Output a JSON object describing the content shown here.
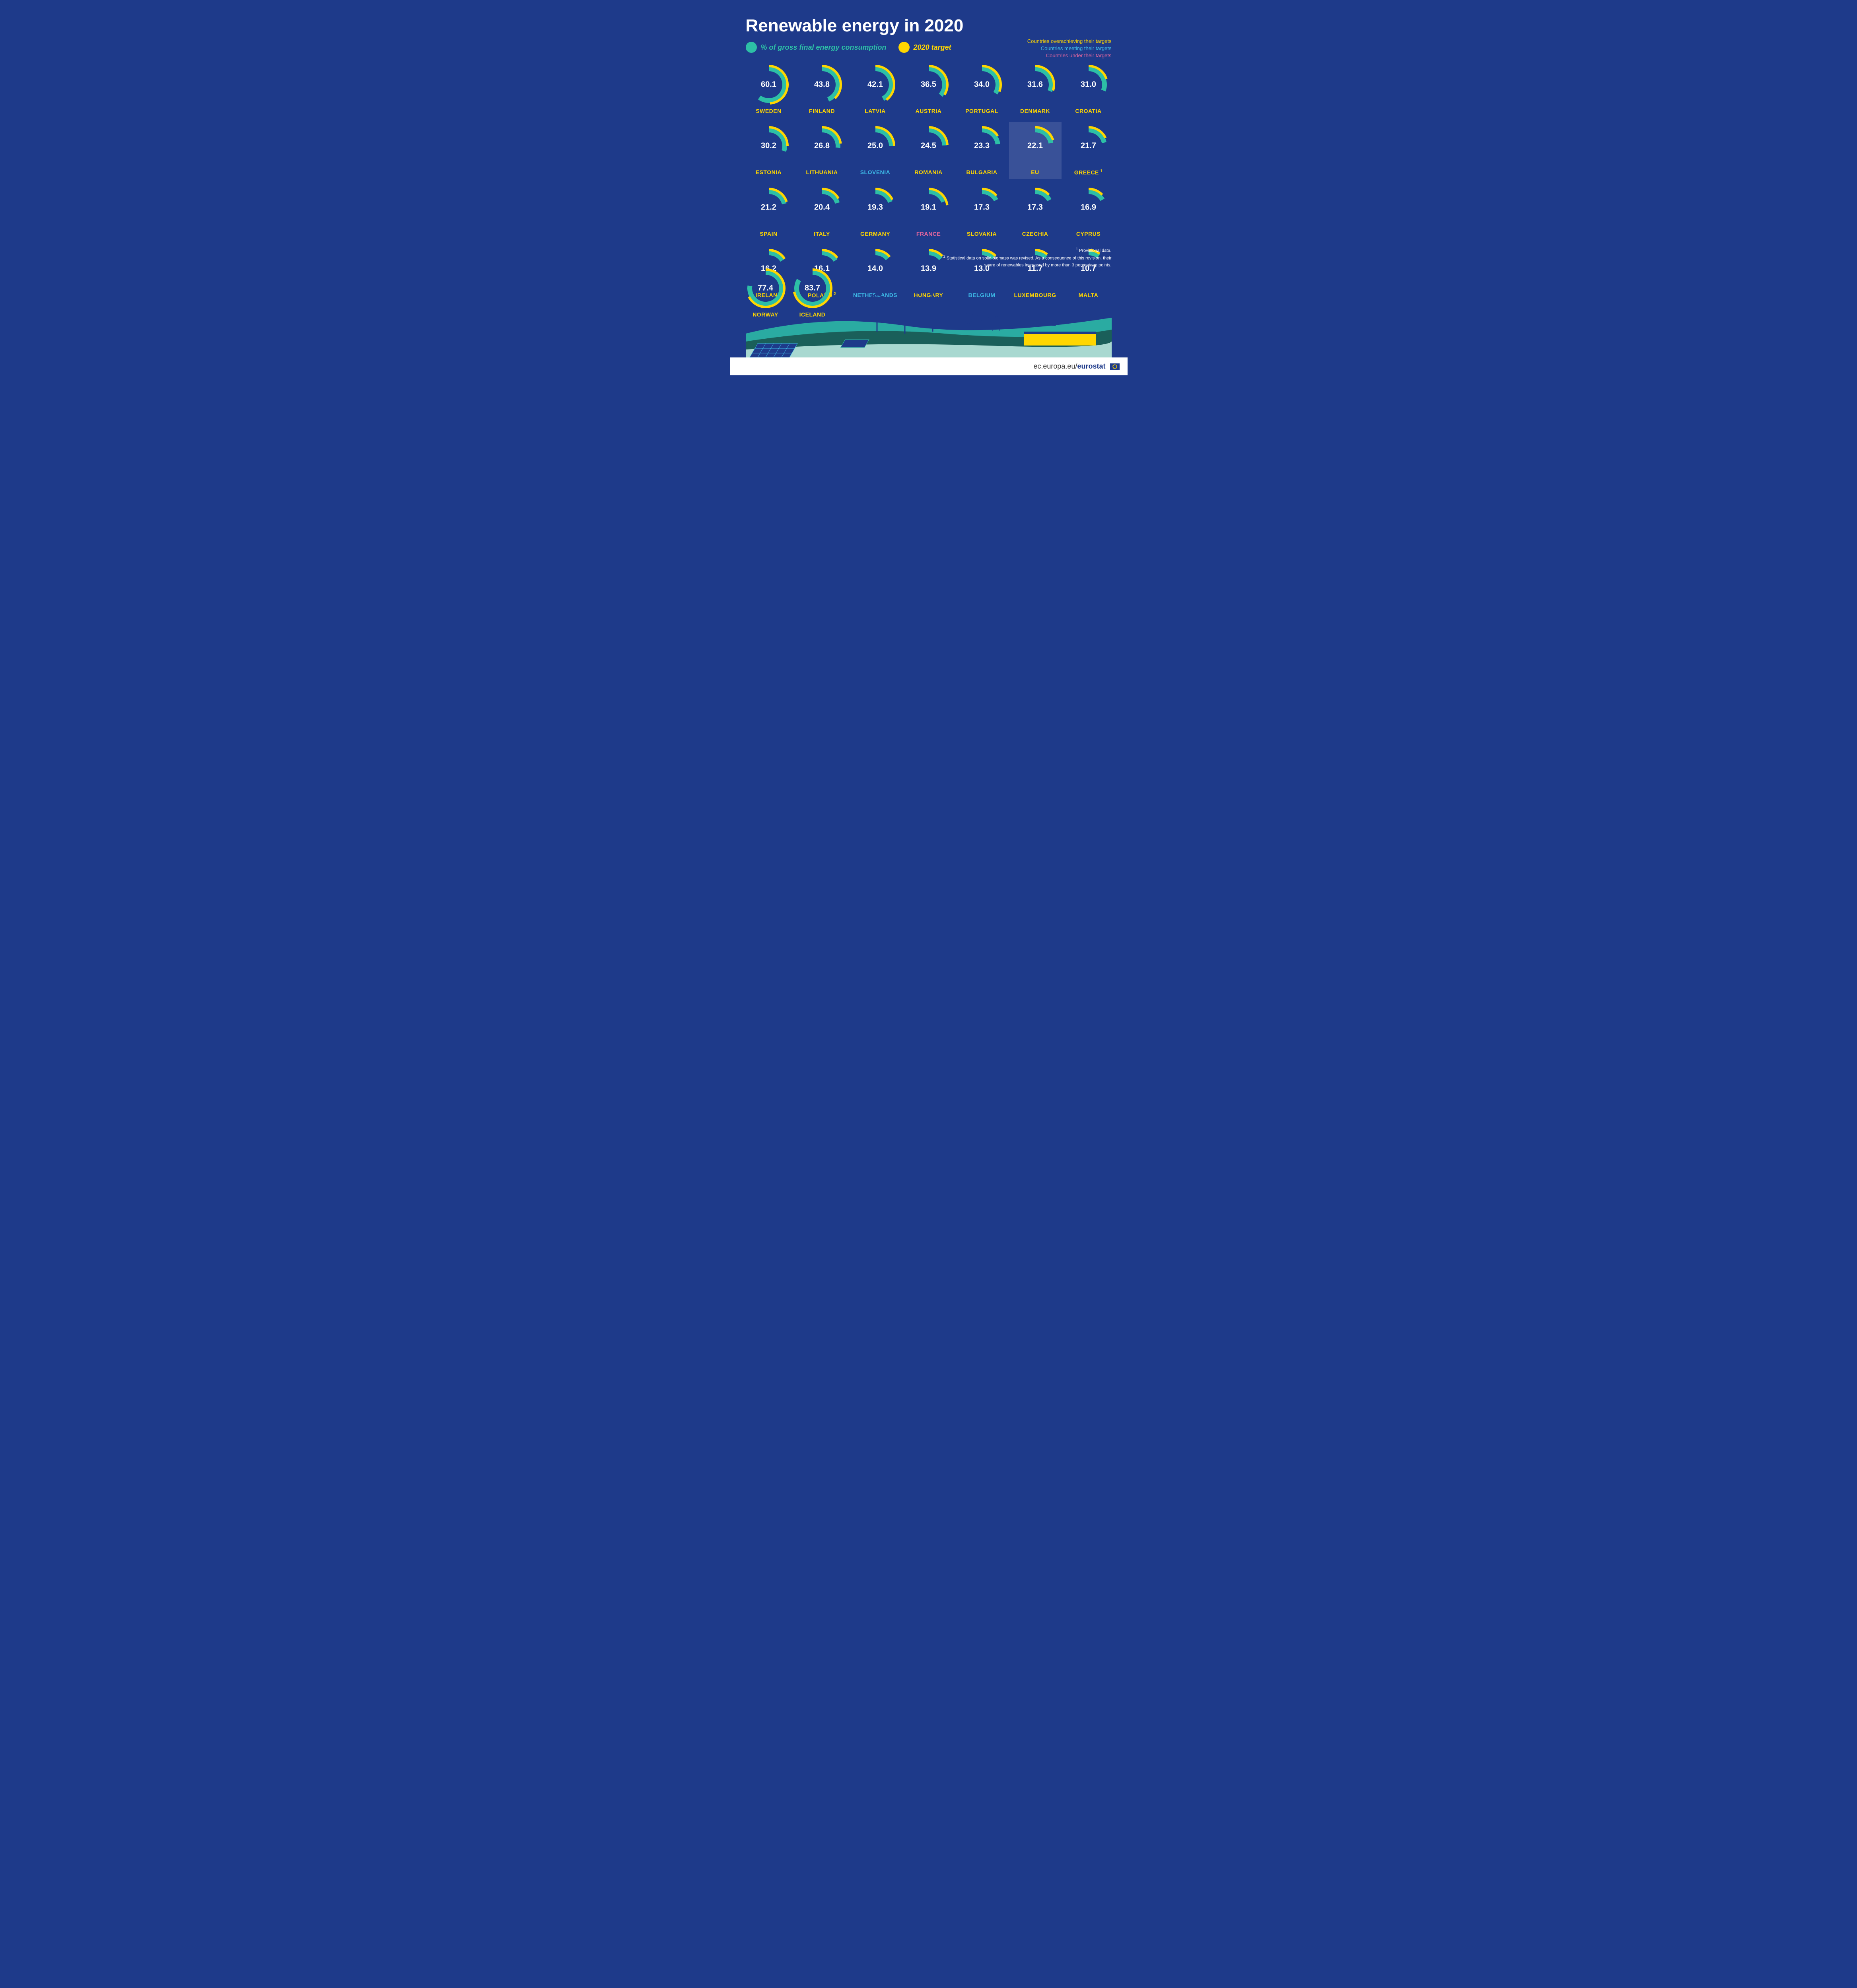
{
  "colors": {
    "background": "#1e3a8a",
    "consumption": "#2dbfa6",
    "target": "#ffd600",
    "over": "#ffd600",
    "meeting": "#3db8e6",
    "under": "#e6679f",
    "text": "#ffffff",
    "highlight_bg": "rgba(255,255,255,0.12)"
  },
  "title": "Renewable energy in 2020",
  "legend": {
    "consumption": "% of gross final energy consumption",
    "target": "2020 target",
    "over": "Countries overachieving their targets",
    "meeting": "Countries meeting their targets",
    "under": "Countries under their targets"
  },
  "donut": {
    "outer_radius": 46,
    "ring_thickness": 12,
    "gap_degrees": 2,
    "start_angle": -90
  },
  "countries": [
    {
      "name": "SWEDEN",
      "value": 60.1,
      "target": 49,
      "status": "over"
    },
    {
      "name": "FINLAND",
      "value": 43.8,
      "target": 38,
      "status": "over"
    },
    {
      "name": "LATVIA",
      "value": 42.1,
      "target": 40,
      "status": "over"
    },
    {
      "name": "AUSTRIA",
      "value": 36.5,
      "target": 34,
      "status": "over"
    },
    {
      "name": "PORTUGAL",
      "value": 34.0,
      "target": 31,
      "status": "over"
    },
    {
      "name": "DENMARK",
      "value": 31.6,
      "target": 30,
      "status": "over"
    },
    {
      "name": "CROATIA",
      "value": 31.0,
      "target": 20,
      "status": "over"
    },
    {
      "name": "ESTONIA",
      "value": 30.2,
      "target": 25,
      "status": "over"
    },
    {
      "name": "LITHUANIA",
      "value": 26.8,
      "target": 23,
      "status": "over"
    },
    {
      "name": "SLOVENIA",
      "value": 25.0,
      "target": 25,
      "status": "meeting"
    },
    {
      "name": "ROMANIA",
      "value": 24.5,
      "target": 24,
      "status": "over"
    },
    {
      "name": "BULGARIA",
      "value": 23.3,
      "target": 16,
      "status": "over"
    },
    {
      "name": "EU",
      "value": 22.1,
      "target": 20,
      "status": "over",
      "highlighted": true
    },
    {
      "name": "GREECE",
      "value": 21.7,
      "target": 18,
      "status": "over",
      "note": 1
    },
    {
      "name": "SPAIN",
      "value": 21.2,
      "target": 20,
      "status": "over"
    },
    {
      "name": "ITALY",
      "value": 20.4,
      "target": 17,
      "status": "over"
    },
    {
      "name": "GERMANY",
      "value": 19.3,
      "target": 18,
      "status": "over"
    },
    {
      "name": "FRANCE",
      "value": 19.1,
      "target": 23,
      "status": "under"
    },
    {
      "name": "SLOVAKIA",
      "value": 17.3,
      "target": 14,
      "status": "over"
    },
    {
      "name": "CZECHIA",
      "value": 17.3,
      "target": 13,
      "status": "over"
    },
    {
      "name": "CYPRUS",
      "value": 16.9,
      "target": 13,
      "status": "over"
    },
    {
      "name": "IRELAND",
      "value": 16.2,
      "target": 16,
      "status": "over"
    },
    {
      "name": "POLAND",
      "value": 16.1,
      "target": 15,
      "status": "over",
      "note": 2
    },
    {
      "name": "NETHERLANDS",
      "value": 14.0,
      "target": 14,
      "status": "meeting"
    },
    {
      "name": "HUNGARY",
      "value": 13.9,
      "target": 13,
      "status": "over"
    },
    {
      "name": "BELGIUM",
      "value": 13.0,
      "target": 13,
      "status": "meeting"
    },
    {
      "name": "LUXEMBOURG",
      "value": 11.7,
      "target": 11,
      "status": "over"
    },
    {
      "name": "MALTA",
      "value": 10.7,
      "target": 10,
      "status": "over"
    }
  ],
  "efta": [
    {
      "name": "NORWAY",
      "value": 77.4,
      "target": 67.5,
      "status": "over"
    },
    {
      "name": "ICELAND",
      "value": 83.7,
      "target": 72,
      "status": "over"
    }
  ],
  "footnotes": {
    "1": "Provisional data.",
    "2": "Statistical data on solid biomass was revised. As a consequence of this revision, their share of renewables increased by more than 3 percentage points."
  },
  "footer": {
    "url_prefix": "ec.europa.eu/",
    "url_bold": "eurostat"
  }
}
